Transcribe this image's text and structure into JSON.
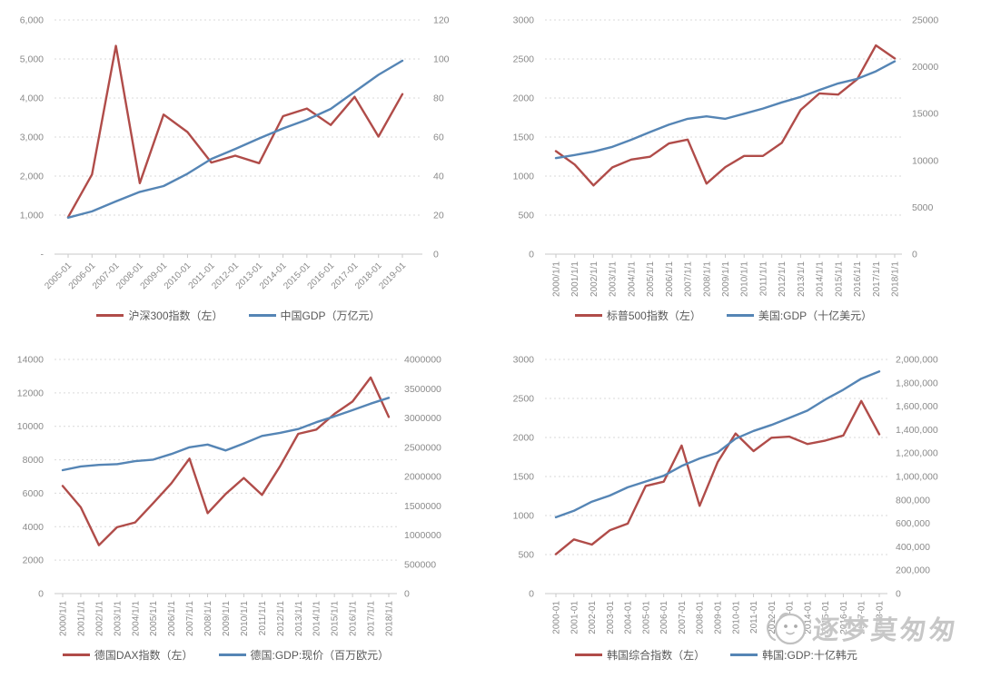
{
  "page": {
    "background": "#ffffff"
  },
  "colors": {
    "index_red": "#b04c49",
    "gdp_blue": "#5585b5",
    "gridline": "#d9d9d9",
    "axis_line": "#c9c9c9",
    "axis_text": "#8a8a8a",
    "legend_text": "#595959",
    "watermark": "#c7c7c7"
  },
  "watermark": {
    "text": "逐梦莫匆匆",
    "icon": "mascot-face-icon"
  },
  "chart_data": [
    {
      "id": "china-csi300-vs-gdp",
      "type": "line",
      "grid": "horizontal-dashed",
      "legend_position": "bottom",
      "x_labels": [
        "2005-01",
        "2006-01",
        "2007-01",
        "2008-01",
        "2009-01",
        "2010-01",
        "2011-01",
        "2012-01",
        "2013-01",
        "2014-01",
        "2015-01",
        "2016-01",
        "2017-01",
        "2018-01",
        "2019-01"
      ],
      "left_axis": {
        "min": 0,
        "max": 6000,
        "tick_labels": [
          "6,000",
          "5,000",
          "4,000",
          "3,000",
          "2,000",
          "1,000",
          "-"
        ]
      },
      "right_axis": {
        "min": 0,
        "max": 120,
        "tick_labels": [
          "120",
          "100",
          "80",
          "60",
          "40",
          "20",
          "0"
        ]
      },
      "series": [
        {
          "name": "沪深300指数（左）",
          "axis": "left",
          "color": "#b04c49",
          "values": [
            950,
            2041,
            5338,
            1818,
            3576,
            3129,
            2346,
            2523,
            2331,
            3534,
            3731,
            3310,
            4031,
            3011,
            4100
          ]
        },
        {
          "name": "中国GDP（万亿元）",
          "axis": "right",
          "color": "#5585b5",
          "values": [
            18.7,
            21.9,
            27.0,
            31.9,
            34.9,
            41.2,
            48.8,
            53.9,
            59.3,
            64.4,
            68.9,
            74.4,
            83.2,
            91.9,
            99.1
          ]
        }
      ]
    },
    {
      "id": "us-sp500-vs-gdp",
      "type": "line",
      "grid": "horizontal-dashed",
      "legend_position": "bottom",
      "x_labels": [
        "2000/1/1",
        "2001/1/1",
        "2002/1/1",
        "2003/1/1",
        "2004/1/1",
        "2005/1/1",
        "2006/1/1",
        "2007/1/1",
        "2008/1/1",
        "2009/1/1",
        "2010/1/1",
        "2011/1/1",
        "2012/1/1",
        "2013/1/1",
        "2014/1/1",
        "2015/1/1",
        "2016/1/1",
        "2017/1/1",
        "2018/1/1"
      ],
      "left_axis": {
        "min": 0,
        "max": 3000,
        "tick_labels": [
          "3000",
          "2500",
          "2000",
          "1500",
          "1000",
          "500",
          "0"
        ]
      },
      "right_axis": {
        "min": 0,
        "max": 25000,
        "tick_labels": [
          "25000",
          "20000",
          "15000",
          "10000",
          "5000",
          "0"
        ]
      },
      "series": [
        {
          "name": "标普500指数（左）",
          "axis": "left",
          "color": "#b04c49",
          "values": [
            1320,
            1148,
            880,
            1112,
            1212,
            1248,
            1418,
            1468,
            903,
            1115,
            1258,
            1258,
            1426,
            1848,
            2059,
            2044,
            2239,
            2674,
            2507
          ]
        },
        {
          "name": "美国:GDP（十亿美元）",
          "axis": "right",
          "color": "#5585b5",
          "values": [
            10252,
            10582,
            10936,
            11458,
            12214,
            13037,
            13815,
            14452,
            14713,
            14449,
            14992,
            15543,
            16197,
            16785,
            17527,
            18225,
            18715,
            19519,
            20580
          ]
        }
      ]
    },
    {
      "id": "germany-dax-vs-gdp",
      "type": "line",
      "grid": "horizontal-dashed",
      "legend_position": "bottom",
      "x_labels": [
        "2000/1/1",
        "2001/1/1",
        "2002/1/1",
        "2003/1/1",
        "2004/1/1",
        "2005/1/1",
        "2006/1/1",
        "2007/1/1",
        "2008/1/1",
        "2009/1/1",
        "2010/1/1",
        "2011/1/1",
        "2012/1/1",
        "2013/1/1",
        "2014/1/1",
        "2015/1/1",
        "2016/1/1",
        "2017/1/1",
        "2018/1/1"
      ],
      "left_axis": {
        "min": 0,
        "max": 14000,
        "tick_labels": [
          "14000",
          "12000",
          "10000",
          "8000",
          "6000",
          "4000",
          "2000",
          "0"
        ]
      },
      "right_axis": {
        "min": 0,
        "max": 4000000,
        "tick_labels": [
          "4000000",
          "3500000",
          "3000000",
          "2500000",
          "2000000",
          "1500000",
          "1000000",
          "500000",
          "0"
        ]
      },
      "series": [
        {
          "name": "德国DAX指数（左）",
          "axis": "left",
          "color": "#b04c49",
          "values": [
            6434,
            5160,
            2893,
            3965,
            4256,
            5408,
            6597,
            8067,
            4810,
            5957,
            6914,
            5898,
            7612,
            9552,
            9806,
            10743,
            11481,
            12918,
            10559
          ]
        },
        {
          "name": "德国:GDP:现价（百万欧元）",
          "axis": "right",
          "color": "#5585b5",
          "values": [
            2109000,
            2172000,
            2198000,
            2211000,
            2262000,
            2288000,
            2385000,
            2499000,
            2546000,
            2445000,
            2564000,
            2693000,
            2745000,
            2811000,
            2927000,
            3026000,
            3134000,
            3245000,
            3344000
          ]
        }
      ]
    },
    {
      "id": "korea-kospi-vs-gdp",
      "type": "line",
      "grid": "horizontal-dashed",
      "legend_position": "bottom",
      "x_labels": [
        "2000-01",
        "2001-01",
        "2002-01",
        "2003-01",
        "2004-01",
        "2005-01",
        "2006-01",
        "2007-01",
        "2008-01",
        "2009-01",
        "2010-01",
        "2011-01",
        "2012-01",
        "2013-01",
        "2014-01",
        "2015-01",
        "2016-01",
        "2017-01",
        "2018-01"
      ],
      "left_axis": {
        "min": 0,
        "max": 3000,
        "tick_labels": [
          "3000",
          "2500",
          "2000",
          "1500",
          "1000",
          "500",
          "0"
        ]
      },
      "right_axis": {
        "min": 0,
        "max": 2000000,
        "tick_labels": [
          "2,000,000",
          "1,800,000",
          "1,600,000",
          "1,400,000",
          "1,200,000",
          "1,000,000",
          "800,000",
          "600,000",
          "400,000",
          "200,000",
          "0"
        ]
      },
      "series": [
        {
          "name": "韩国综合指数（左）",
          "axis": "left",
          "color": "#b04c49",
          "values": [
            505,
            694,
            628,
            811,
            896,
            1379,
            1434,
            1897,
            1124,
            1683,
            2051,
            1826,
            1997,
            2011,
            1916,
            1961,
            2026,
            2467,
            2041
          ]
        },
        {
          "name": "韩国:GDP:十亿韩元",
          "axis": "right",
          "color": "#5585b5",
          "values": [
            652000,
            707000,
            785000,
            837000,
            908000,
            957000,
            1006000,
            1090000,
            1154000,
            1205000,
            1323000,
            1389000,
            1440000,
            1501000,
            1563000,
            1658000,
            1741000,
            1836000,
            1898000
          ]
        }
      ]
    }
  ]
}
